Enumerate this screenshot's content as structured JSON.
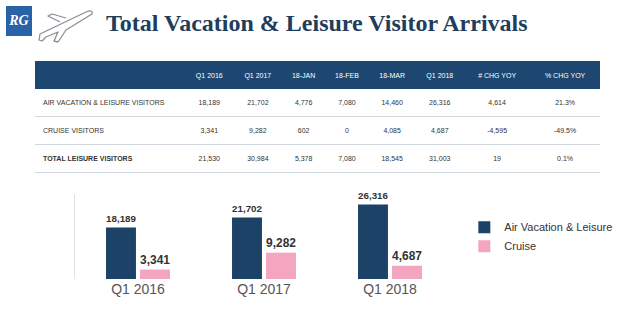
{
  "header": {
    "logo": "RG",
    "title": "Total Vacation & Leisure Visitor Arrivals"
  },
  "table": {
    "columns": [
      null,
      "Q1 2016",
      "Q1 2017",
      "18-JAN",
      "18-FEB",
      "18-MAR",
      "Q1 2018",
      "# CHG YOY",
      "% CHG YOY"
    ],
    "rows": [
      [
        "AIR VACATION & LEISURE VISITORS",
        "18,189",
        "21,702",
        "4,776",
        "7,080",
        "14,460",
        "26,316",
        "4,614",
        "21.3%"
      ],
      [
        "CRUISE VISITORS",
        "3,341",
        "9,282",
        "602",
        "0",
        "4,085",
        "4,687",
        "-4,595",
        "-49.5%"
      ],
      [
        "TOTAL LEISURE VISITORS",
        "21,530",
        "30,984",
        "5,378",
        "7,080",
        "18,545",
        "31,003",
        "19",
        "0.1%"
      ]
    ]
  },
  "chart_data": {
    "type": "bar",
    "categories": [
      "Q1 2016",
      "Q1 2017",
      "Q1 2018"
    ],
    "series": [
      {
        "name": "Air Vacation & Leisure",
        "color": "#1c4268",
        "values": [
          18189,
          21702,
          26316
        ],
        "value_labels": [
          "18,189",
          "21,702",
          "26,316"
        ]
      },
      {
        "name": "Cruise",
        "color": "#f4a6c0",
        "values": [
          3341,
          9282,
          4687
        ],
        "value_labels": [
          "3,341",
          "9,282",
          "4,687"
        ]
      }
    ],
    "ylim": [
      0,
      30000
    ],
    "grid": false,
    "legend": "right",
    "data_labels": true,
    "tick_labels": "x"
  }
}
